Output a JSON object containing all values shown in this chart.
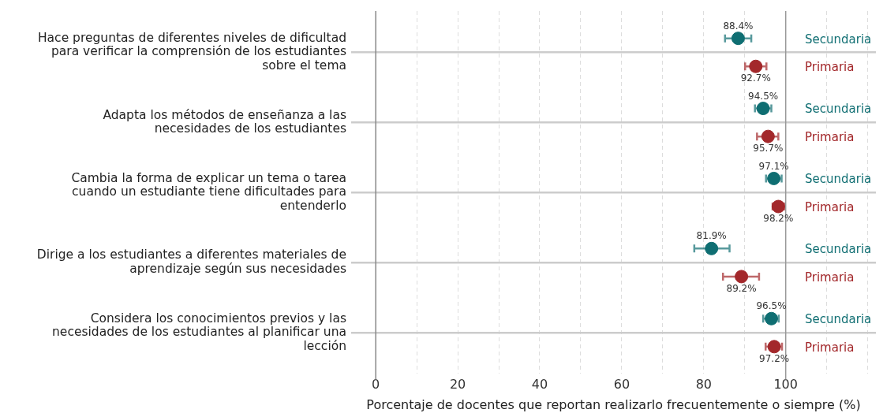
{
  "chart_data": {
    "type": "scatter",
    "orientation": "horizontal",
    "marker": "circle",
    "grid": true,
    "xlabel": "Porcentaje de docentes que reportan realizarlo frecuentemente o siempre (%)",
    "categories": [
      "Hace preguntas de diferentes niveles de dificultad para verificar la comprensión de los estudiantes sobre el tema",
      "Adapta los métodos de enseñanza a las necesidades de los estudiantes",
      "Cambia la forma de explicar un tema o tarea cuando un estudiante tiene dificultades para entenderlo",
      "Dirige a los estudiantes a diferentes materiales de aprendizaje según sus necesidades",
      "Considera los conocimientos previos y las necesidades de los estudiantes al planificar una lección"
    ],
    "xlim": [
      -6,
      122
    ],
    "xticks": [
      0,
      {
        "value": 10,
        "label": null
      },
      20,
      {
        "value": 30,
        "label": null
      },
      40,
      {
        "value": 50,
        "label": null
      },
      60,
      {
        "value": 70,
        "label": null
      },
      80,
      {
        "value": 90,
        "label": null
      },
      100,
      {
        "value": 110,
        "label": null
      },
      {
        "value": 120,
        "label": null
      }
    ],
    "ref_lines": [
      {
        "axis": "x",
        "value": 100,
        "color": "#999999"
      }
    ],
    "series": [
      {
        "name": "Secundaria",
        "color": "#0f6e72",
        "values": [
          88.4,
          94.5,
          97.1,
          81.9,
          96.5
        ],
        "errors": [
          [
            85.2,
            91.6
          ],
          [
            92.5,
            96.5
          ],
          [
            95.2,
            99.0
          ],
          [
            77.7,
            86.3
          ],
          [
            94.5,
            98.3
          ]
        ],
        "value_labels": [
          "88.4%",
          "94.5%",
          "97.1%",
          "81.9%",
          "96.5%"
        ]
      },
      {
        "name": "Primaria",
        "color": "#a3282b",
        "values": [
          92.7,
          95.7,
          98.2,
          89.2,
          97.2
        ],
        "errors": [
          [
            90.1,
            95.3
          ],
          [
            93.0,
            98.2
          ],
          [
            96.8,
            99.6
          ],
          [
            84.7,
            93.5
          ],
          [
            95.1,
            99.1
          ]
        ],
        "value_labels": [
          "92.7%",
          "95.7%",
          "98.2%",
          "89.2%",
          "97.2%"
        ]
      }
    ]
  }
}
